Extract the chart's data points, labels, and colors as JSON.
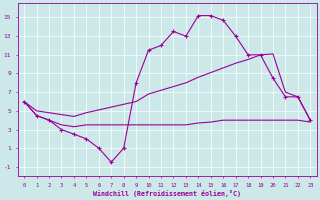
{
  "line1_x": [
    0,
    1,
    2,
    3,
    4,
    5,
    6,
    7,
    8,
    9,
    10,
    11,
    12,
    13,
    14,
    15,
    16,
    17,
    18,
    19,
    20,
    21,
    22,
    23
  ],
  "line1_y": [
    6,
    4.5,
    4,
    3,
    2.5,
    2,
    1,
    -0.5,
    1,
    8,
    11.5,
    12,
    13.5,
    13,
    15.2,
    15.2,
    14.7,
    13,
    11,
    11,
    8.5,
    6.5,
    6.5,
    4
  ],
  "line2_x": [
    0,
    1,
    2,
    3,
    4,
    5,
    6,
    7,
    8,
    9,
    10,
    11,
    12,
    13,
    14,
    15,
    16,
    17,
    18,
    19,
    20,
    21,
    22,
    23
  ],
  "line2_y": [
    6,
    5,
    4.8,
    4.6,
    4.4,
    4.8,
    5.1,
    5.4,
    5.7,
    6.0,
    6.8,
    7.2,
    7.6,
    8.0,
    8.6,
    9.1,
    9.6,
    10.1,
    10.5,
    11.0,
    11.1,
    7,
    6.5,
    4
  ],
  "line3_x": [
    0,
    1,
    2,
    3,
    4,
    5,
    6,
    7,
    8,
    9,
    10,
    11,
    12,
    13,
    14,
    15,
    16,
    17,
    18,
    19,
    20,
    21,
    22,
    23
  ],
  "line3_y": [
    6,
    4.5,
    4,
    3.5,
    3.3,
    3.5,
    3.5,
    3.5,
    3.5,
    3.5,
    3.5,
    3.5,
    3.5,
    3.5,
    3.7,
    3.8,
    4.0,
    4.0,
    4.0,
    4.0,
    4.0,
    4.0,
    4.0,
    3.8
  ],
  "color": "#990099",
  "bg_color": "#cce8e8",
  "grid_color": "#ffffff",
  "xlim": [
    -0.5,
    23.5
  ],
  "ylim": [
    -2.0,
    16.5
  ],
  "yticks": [
    -1,
    1,
    3,
    5,
    7,
    9,
    11,
    13,
    15
  ],
  "xticks": [
    0,
    1,
    2,
    3,
    4,
    5,
    6,
    7,
    8,
    9,
    10,
    11,
    12,
    13,
    14,
    15,
    16,
    17,
    18,
    19,
    20,
    21,
    22,
    23
  ],
  "xlabel": "Windchill (Refroidissement éolien,°C)"
}
